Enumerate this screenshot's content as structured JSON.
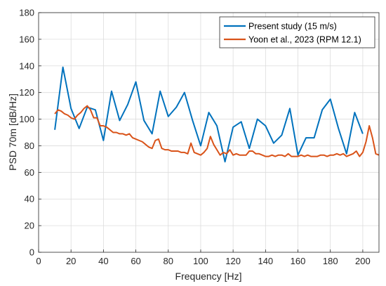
{
  "chart_data": {
    "type": "line",
    "xlabel": "Frequency [Hz]",
    "ylabel": "PSD 70m [dB/Hz]",
    "xlim": [
      0,
      210
    ],
    "ylim": [
      0,
      180
    ],
    "xticks": [
      0,
      20,
      40,
      60,
      80,
      100,
      120,
      140,
      160,
      180,
      200
    ],
    "yticks": [
      0,
      20,
      40,
      60,
      80,
      100,
      120,
      140,
      160,
      180
    ],
    "grid": true,
    "legend_position": "top-right",
    "series": [
      {
        "name": "Present study (15 m/s)",
        "color": "#0072BD",
        "x": [
          10,
          15,
          20,
          25,
          30,
          35,
          40,
          45,
          50,
          55,
          60,
          65,
          70,
          75,
          80,
          85,
          90,
          95,
          100,
          105,
          110,
          115,
          120,
          125,
          130,
          135,
          140,
          145,
          150,
          155,
          160,
          165,
          170,
          175,
          180,
          185,
          190,
          195,
          200
        ],
        "y": [
          92,
          139,
          108,
          93,
          109,
          107,
          84,
          121,
          99,
          111,
          128,
          99,
          89,
          121,
          102,
          109,
          120,
          99,
          80,
          105,
          95,
          68,
          94,
          98,
          78,
          100,
          95,
          82,
          88,
          108,
          73,
          86,
          86,
          107,
          115,
          93,
          74,
          105,
          89
        ]
      },
      {
        "name": "Yoon et al., 2023 (RPM 12.1)",
        "color": "#D95319",
        "x": [
          10,
          12,
          14,
          16,
          18,
          20,
          22,
          24,
          26,
          28,
          30,
          32,
          34,
          36,
          38,
          40,
          42,
          44,
          46,
          48,
          50,
          52,
          54,
          56,
          58,
          60,
          62,
          64,
          66,
          68,
          70,
          72,
          74,
          76,
          78,
          80,
          82,
          84,
          86,
          88,
          90,
          92,
          94,
          96,
          98,
          100,
          102,
          104,
          106,
          108,
          110,
          112,
          114,
          116,
          118,
          120,
          122,
          124,
          126,
          128,
          130,
          132,
          134,
          136,
          138,
          140,
          142,
          144,
          146,
          148,
          150,
          152,
          154,
          156,
          158,
          160,
          162,
          164,
          166,
          168,
          170,
          172,
          174,
          176,
          178,
          180,
          182,
          184,
          186,
          188,
          190,
          192,
          194,
          196,
          198,
          200,
          202,
          204,
          206,
          208,
          210
        ],
        "y": [
          104,
          107,
          106,
          104,
          103,
          101,
          100,
          103,
          105,
          108,
          110,
          107,
          101,
          101,
          95,
          95,
          94,
          92,
          90,
          90,
          89,
          89,
          88,
          89,
          86,
          85,
          84,
          83,
          81,
          79,
          78,
          84,
          85,
          78,
          77,
          77,
          76,
          76,
          76,
          75,
          75,
          74,
          82,
          75,
          74,
          73,
          75,
          78,
          87,
          81,
          77,
          73,
          75,
          74,
          77,
          73,
          74,
          73,
          73,
          73,
          76,
          76,
          74,
          74,
          73,
          72,
          72,
          73,
          72,
          73,
          73,
          72,
          74,
          72,
          72,
          72,
          73,
          72,
          73,
          72,
          72,
          72,
          73,
          73,
          72,
          73,
          73,
          74,
          73,
          74,
          72,
          73,
          74,
          76,
          72,
          75,
          83,
          95,
          86,
          74,
          73
        ]
      }
    ]
  }
}
